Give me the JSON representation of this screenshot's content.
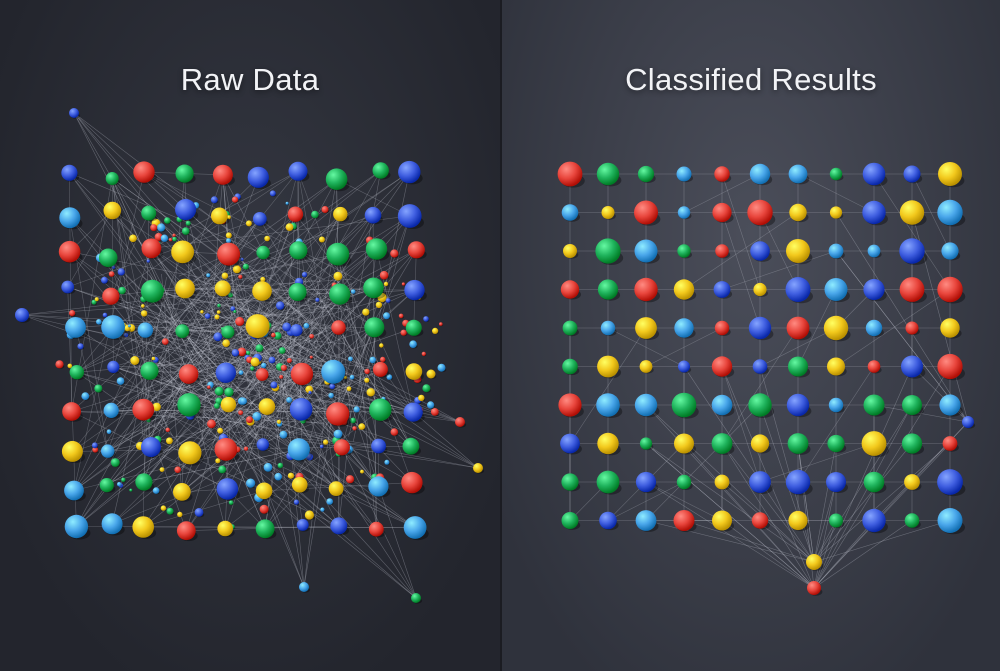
{
  "panels": {
    "left": {
      "title": "Raw Data"
    },
    "right": {
      "title": "Classified Results"
    }
  },
  "palette": {
    "blue": "#3f5ee0",
    "red": "#e8453c",
    "yellow": "#f2c81c",
    "green": "#1fb35c",
    "lightblue": "#49a6ea",
    "edge": "#c9ccd6"
  }
}
